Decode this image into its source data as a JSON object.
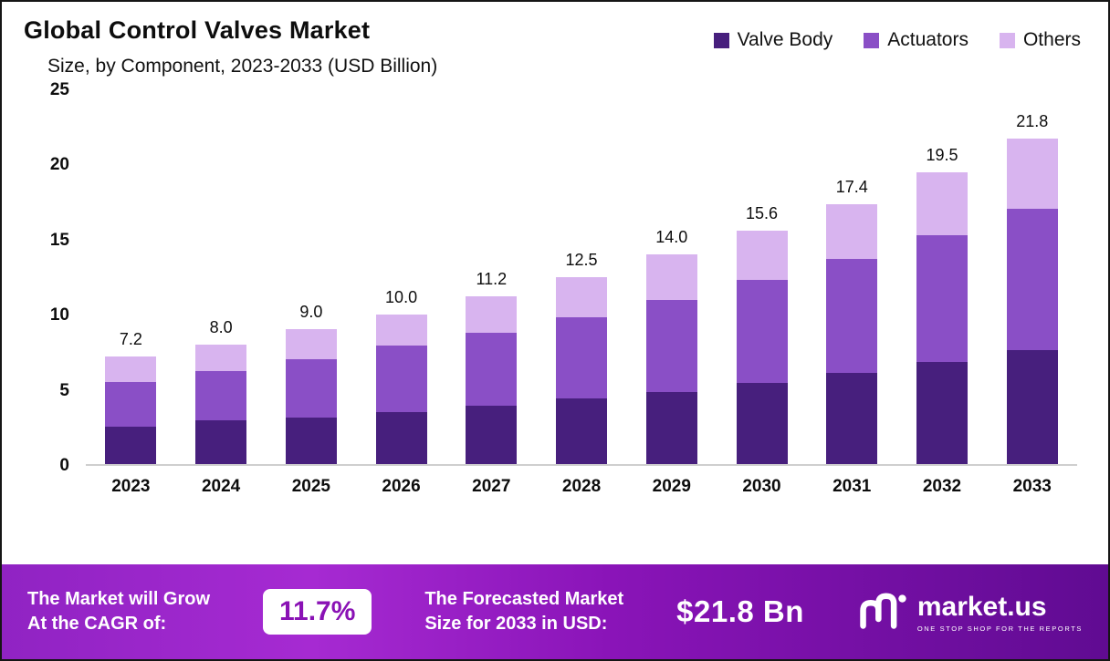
{
  "header": {
    "title": "Global Control Valves Market",
    "subtitle": "Size, by Component, 2023-2033 (USD Billion)"
  },
  "legend": [
    {
      "label": "Valve Body",
      "color": "#471f7d"
    },
    {
      "label": "Actuators",
      "color": "#8a4fc6"
    },
    {
      "label": "Others",
      "color": "#d8b4ef"
    }
  ],
  "chart_data": {
    "type": "bar",
    "stacked": true,
    "title": "Global Control Valves Market Size, by Component, 2023-2033 (USD Billion)",
    "categories": [
      "2023",
      "2024",
      "2025",
      "2026",
      "2027",
      "2028",
      "2029",
      "2030",
      "2031",
      "2032",
      "2033"
    ],
    "series": [
      {
        "name": "Valve Body",
        "color": "#471f7d",
        "values": [
          2.5,
          2.9,
          3.1,
          3.5,
          3.9,
          4.4,
          4.8,
          5.4,
          6.1,
          6.8,
          7.6
        ]
      },
      {
        "name": "Actuators",
        "color": "#8a4fc6",
        "values": [
          3.0,
          3.3,
          3.9,
          4.4,
          4.9,
          5.4,
          6.2,
          6.9,
          7.6,
          8.5,
          9.5
        ]
      },
      {
        "name": "Others",
        "color": "#d8b4ef",
        "values": [
          1.7,
          1.8,
          2.0,
          2.1,
          2.4,
          2.7,
          3.0,
          3.3,
          3.7,
          4.2,
          4.7
        ]
      }
    ],
    "totals": [
      7.2,
      8.0,
      9.0,
      10.0,
      11.2,
      12.5,
      14.0,
      15.6,
      17.4,
      19.5,
      21.8
    ],
    "xlabel": "",
    "ylabel": "",
    "ylim": [
      0,
      25
    ],
    "yticks": [
      0,
      5,
      10,
      15,
      20,
      25
    ],
    "grid": false,
    "legend_position": "top-right"
  },
  "footer": {
    "cagr_line1": "The Market will Grow",
    "cagr_line2": "At the CAGR of:",
    "cagr_value": "11.7%",
    "forecast_line1": "The Forecasted Market",
    "forecast_line2": "Size for 2033 in USD:",
    "forecast_value": "$21.8 Bn",
    "brand": "market.us",
    "brand_tagline": "ONE STOP SHOP FOR THE REPORTS"
  }
}
